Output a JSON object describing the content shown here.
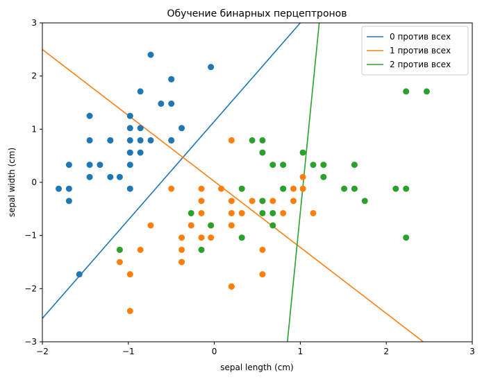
{
  "chart_data": {
    "type": "scatter",
    "title": "Обучение бинарных перцептронов",
    "xlabel": "sepal length (cm)",
    "ylabel": "sepal width (cm)",
    "xlim": [
      -2,
      3
    ],
    "ylim": [
      -3,
      3
    ],
    "xticks": [
      -2,
      -1,
      0,
      1,
      2,
      3
    ],
    "yticks": [
      -3,
      -2,
      -1,
      0,
      1,
      2,
      3
    ],
    "grid": false,
    "legend_position": "top-right",
    "colors": {
      "class0": "#1f77b4",
      "class1": "#ff7f0e",
      "class2": "#2ca02c"
    },
    "series": [
      {
        "type": "scatter",
        "color": "#1f77b4",
        "points": [
          [
            -1.81,
            -0.12
          ],
          [
            -1.69,
            -0.12
          ],
          [
            -1.69,
            -0.35
          ],
          [
            -1.69,
            0.33
          ],
          [
            -1.57,
            -1.73
          ],
          [
            -1.45,
            1.25
          ],
          [
            -1.45,
            0.79
          ],
          [
            -1.45,
            0.33
          ],
          [
            -1.45,
            0.1
          ],
          [
            -1.33,
            0.33
          ],
          [
            -1.21,
            0.79
          ],
          [
            -1.21,
            0.79
          ],
          [
            -1.21,
            0.1
          ],
          [
            -1.1,
            0.1
          ],
          [
            -0.98,
            1.25
          ],
          [
            -0.98,
            1.02
          ],
          [
            -0.98,
            0.79
          ],
          [
            -0.98,
            0.56
          ],
          [
            -0.98,
            0.33
          ],
          [
            -0.98,
            -0.12
          ],
          [
            -0.86,
            1.71
          ],
          [
            -0.86,
            1.02
          ],
          [
            -0.86,
            0.79
          ],
          [
            -0.86,
            0.56
          ],
          [
            -0.74,
            2.4
          ],
          [
            -0.74,
            0.79
          ],
          [
            -0.62,
            1.48
          ],
          [
            -0.5,
            1.94
          ],
          [
            -0.5,
            1.94
          ],
          [
            -0.5,
            1.48
          ],
          [
            -0.5,
            0.79
          ],
          [
            -0.5,
            0.79
          ],
          [
            -0.38,
            1.02
          ],
          [
            -0.04,
            2.17
          ]
        ]
      },
      {
        "type": "scatter",
        "color": "#ff7f0e",
        "points": [
          [
            -1.1,
            -1.5
          ],
          [
            -0.98,
            -1.73
          ],
          [
            -0.98,
            -2.42
          ],
          [
            -0.86,
            -1.27
          ],
          [
            -0.74,
            -0.81
          ],
          [
            -0.5,
            -0.12
          ],
          [
            -0.38,
            -1.04
          ],
          [
            -0.38,
            -1.27
          ],
          [
            -0.38,
            -1.5
          ],
          [
            -0.38,
            -1.5
          ],
          [
            -0.27,
            -0.81
          ],
          [
            -0.15,
            -0.12
          ],
          [
            -0.15,
            -0.35
          ],
          [
            -0.15,
            -0.58
          ],
          [
            -0.15,
            -1.04
          ],
          [
            -0.04,
            -0.81
          ],
          [
            -0.04,
            -1.04
          ],
          [
            0.08,
            -0.12
          ],
          [
            0.2,
            0.79
          ],
          [
            0.2,
            -0.35
          ],
          [
            0.2,
            -0.58
          ],
          [
            0.2,
            -0.81
          ],
          [
            0.2,
            -1.96
          ],
          [
            0.2,
            -1.96
          ],
          [
            0.32,
            -0.58
          ],
          [
            0.44,
            -0.35
          ],
          [
            0.56,
            -0.35
          ],
          [
            0.56,
            -1.27
          ],
          [
            0.56,
            -1.73
          ],
          [
            0.68,
            -0.35
          ],
          [
            0.8,
            -0.58
          ],
          [
            0.92,
            -0.12
          ],
          [
            0.92,
            -0.35
          ],
          [
            1.03,
            -0.12
          ],
          [
            1.03,
            0.1
          ],
          [
            1.15,
            -0.58
          ]
        ]
      },
      {
        "type": "scatter",
        "color": "#2ca02c",
        "points": [
          [
            -1.1,
            -1.27
          ],
          [
            -0.27,
            -0.58
          ],
          [
            -0.15,
            -1.27
          ],
          [
            -0.04,
            -0.81
          ],
          [
            0.32,
            -0.12
          ],
          [
            0.32,
            -1.04
          ],
          [
            0.44,
            0.79
          ],
          [
            0.56,
            0.79
          ],
          [
            0.56,
            0.56
          ],
          [
            0.56,
            -0.35
          ],
          [
            0.56,
            -0.58
          ],
          [
            0.68,
            0.33
          ],
          [
            0.68,
            -0.58
          ],
          [
            0.68,
            -0.81
          ],
          [
            0.8,
            0.33
          ],
          [
            0.8,
            -0.12
          ],
          [
            0.8,
            -0.12
          ],
          [
            1.03,
            0.56
          ],
          [
            1.15,
            0.33
          ],
          [
            1.27,
            0.33
          ],
          [
            1.27,
            0.1
          ],
          [
            1.51,
            -0.12
          ],
          [
            1.63,
            0.33
          ],
          [
            1.63,
            -0.12
          ],
          [
            1.75,
            -0.35
          ],
          [
            2.11,
            -0.12
          ],
          [
            2.23,
            1.71
          ],
          [
            2.23,
            -0.12
          ],
          [
            2.23,
            -1.04
          ],
          [
            2.47,
            1.71
          ]
        ]
      },
      {
        "type": "line",
        "name": "0 против всех",
        "color": "#1f77b4",
        "points": [
          [
            -2.0,
            -2.56
          ],
          [
            1.0,
            3.0
          ]
        ]
      },
      {
        "type": "line",
        "name": "1 против всех",
        "color": "#ff7f0e",
        "points": [
          [
            -2.0,
            2.5
          ],
          [
            2.43,
            -3.0
          ]
        ]
      },
      {
        "type": "line",
        "name": "2 против всех",
        "color": "#2ca02c",
        "points": [
          [
            0.85,
            -3.0
          ],
          [
            1.22,
            3.0
          ]
        ]
      }
    ]
  }
}
